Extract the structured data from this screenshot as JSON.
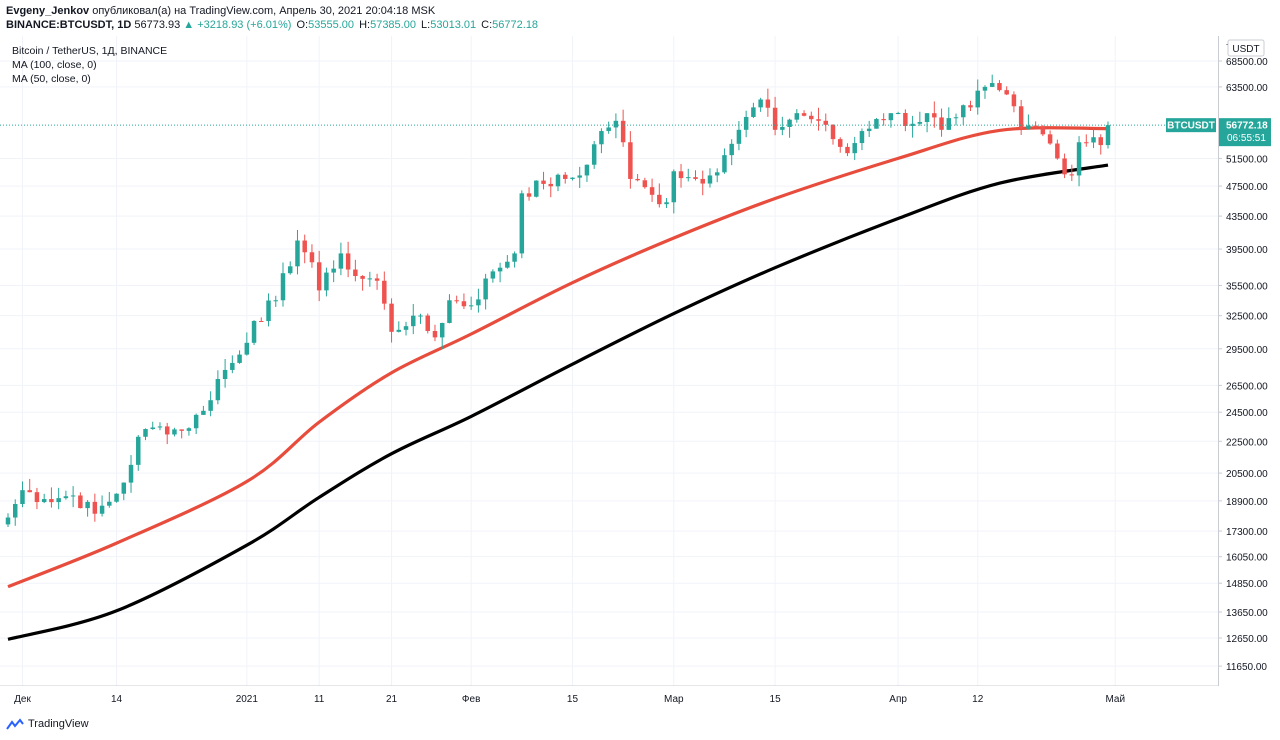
{
  "header": {
    "author": "Evgeny_Jenkov",
    "published_text": "опубликовал(а) на TradingView.com, Апрель 30, 2021 20:04:18 MSK",
    "symbol": "BINANCE:BTCUSDT, 1D",
    "last": "56773.93",
    "change": "▲ +3218.93 (+6.01%)",
    "o_label": "O:",
    "o_value": "53555.00",
    "h_label": "H:",
    "h_value": "57385.00",
    "l_label": "L:",
    "l_value": "53013.01",
    "c_label": "C:",
    "c_value": "56772.18"
  },
  "legend": {
    "title": "Bitcoin / TetherUS, 1Д, BINANCE",
    "ma100": "MA (100, close, 0)",
    "ma50": "MA (50, close, 0)"
  },
  "price_label": {
    "symbol": "BTCUSDT",
    "price": "56772.18",
    "countdown": "06:55:51"
  },
  "currency_badge": "USDT",
  "footer": {
    "brand": "TradingView"
  },
  "colors": {
    "up": "#26a69a",
    "down": "#ef5350",
    "ma50": "#e74c3c",
    "ma100": "#000000",
    "grid": "#f0f3fa"
  },
  "chart_data": {
    "type": "candlestick",
    "y_scale": "log",
    "ylim": [
      10800,
      80000
    ],
    "y_ticks": [
      "7",
      "68500.00",
      "63500.00",
      "51500.00",
      "47500.00",
      "43500.00",
      "39500.00",
      "35500.00",
      "32500.00",
      "29500.00",
      "26500.00",
      "24500.00",
      "22500.00",
      "20500.00",
      "18900.00",
      "17300.00",
      "16050.00",
      "14850.00",
      "13650.00",
      "12650.00",
      "11650.00"
    ],
    "x_ticks": [
      {
        "label": "Дек",
        "date": "2020-12-01"
      },
      {
        "label": "14",
        "date": "2020-12-14"
      },
      {
        "label": "2021",
        "date": "2021-01-01"
      },
      {
        "label": "11",
        "date": "2021-01-11"
      },
      {
        "label": "21",
        "date": "2021-01-21"
      },
      {
        "label": "Фев",
        "date": "2021-02-01"
      },
      {
        "label": "15",
        "date": "2021-02-15"
      },
      {
        "label": "Мар",
        "date": "2021-03-01"
      },
      {
        "label": "15",
        "date": "2021-03-15"
      },
      {
        "label": "Апр",
        "date": "2021-04-01"
      },
      {
        "label": "12",
        "date": "2021-04-12"
      },
      {
        "label": "Май",
        "date": "2021-05-01"
      }
    ],
    "series": [
      {
        "name": "BTCUSDT",
        "type": "candlestick",
        "anchors": [
          [
            "2020-11-29",
            18000
          ],
          [
            "2020-12-01",
            19500
          ],
          [
            "2020-12-04",
            19000
          ],
          [
            "2020-12-08",
            19200
          ],
          [
            "2020-12-11",
            18200
          ],
          [
            "2020-12-14",
            19300
          ],
          [
            "2020-12-16",
            21000
          ],
          [
            "2020-12-17",
            22800
          ],
          [
            "2020-12-20",
            23500
          ],
          [
            "2020-12-23",
            23200
          ],
          [
            "2020-12-26",
            24600
          ],
          [
            "2020-12-28",
            27000
          ],
          [
            "2020-12-31",
            29000
          ],
          [
            "2021-01-02",
            32000
          ],
          [
            "2021-01-05",
            34000
          ],
          [
            "2021-01-08",
            40500
          ],
          [
            "2021-01-10",
            38000
          ],
          [
            "2021-01-11",
            35000
          ],
          [
            "2021-01-13",
            37300
          ],
          [
            "2021-01-14",
            39000
          ],
          [
            "2021-01-16",
            36500
          ],
          [
            "2021-01-19",
            36000
          ],
          [
            "2021-01-21",
            31000
          ],
          [
            "2021-01-24",
            32500
          ],
          [
            "2021-01-27",
            30500
          ],
          [
            "2021-01-29",
            34000
          ],
          [
            "2021-02-01",
            33500
          ],
          [
            "2021-02-04",
            37000
          ],
          [
            "2021-02-07",
            39000
          ],
          [
            "2021-02-08",
            46500
          ],
          [
            "2021-02-11",
            47800
          ],
          [
            "2021-02-14",
            48500
          ],
          [
            "2021-02-16",
            49000
          ],
          [
            "2021-02-19",
            55800
          ],
          [
            "2021-02-21",
            57500
          ],
          [
            "2021-02-22",
            54000
          ],
          [
            "2021-02-23",
            48500
          ],
          [
            "2021-02-26",
            46300
          ],
          [
            "2021-02-28",
            45300
          ],
          [
            "2021-03-01",
            49600
          ],
          [
            "2021-03-04",
            48500
          ],
          [
            "2021-03-06",
            49000
          ],
          [
            "2021-03-08",
            52000
          ],
          [
            "2021-03-10",
            56000
          ],
          [
            "2021-03-13",
            61200
          ],
          [
            "2021-03-15",
            56000
          ],
          [
            "2021-03-18",
            58800
          ],
          [
            "2021-03-21",
            57500
          ],
          [
            "2021-03-23",
            54500
          ],
          [
            "2021-03-25",
            52300
          ],
          [
            "2021-03-27",
            55800
          ],
          [
            "2021-03-29",
            57800
          ],
          [
            "2021-03-31",
            58800
          ],
          [
            "2021-04-03",
            57000
          ],
          [
            "2021-04-05",
            58800
          ],
          [
            "2021-04-07",
            56000
          ],
          [
            "2021-04-09",
            58100
          ],
          [
            "2021-04-11",
            59800
          ],
          [
            "2021-04-13",
            63500
          ],
          [
            "2021-04-15",
            62900
          ],
          [
            "2021-04-17",
            60000
          ],
          [
            "2021-04-18",
            56200
          ],
          [
            "2021-04-20",
            56500
          ],
          [
            "2021-04-22",
            53800
          ],
          [
            "2021-04-23",
            51500
          ],
          [
            "2021-04-25",
            49000
          ],
          [
            "2021-04-26",
            54000
          ],
          [
            "2021-04-28",
            54800
          ],
          [
            "2021-04-29",
            53555
          ],
          [
            "2021-04-30",
            56772
          ]
        ]
      },
      {
        "name": "MA (50, close, 0)",
        "type": "line",
        "color": "#e74c3c",
        "points": [
          [
            "2020-11-29",
            14700
          ],
          [
            "2020-12-14",
            16700
          ],
          [
            "2021-01-01",
            20000
          ],
          [
            "2021-01-11",
            23800
          ],
          [
            "2021-01-21",
            27500
          ],
          [
            "2021-02-01",
            30800
          ],
          [
            "2021-02-15",
            35800
          ],
          [
            "2021-03-01",
            40800
          ],
          [
            "2021-03-15",
            45800
          ],
          [
            "2021-04-01",
            51500
          ],
          [
            "2021-04-15",
            55900
          ],
          [
            "2021-04-30",
            56200
          ]
        ]
      },
      {
        "name": "MA (100, close, 0)",
        "type": "line",
        "color": "#000000",
        "points": [
          [
            "2020-11-29",
            12600
          ],
          [
            "2020-12-14",
            13700
          ],
          [
            "2021-01-01",
            16600
          ],
          [
            "2021-01-11",
            19100
          ],
          [
            "2021-01-21",
            21700
          ],
          [
            "2021-02-01",
            24200
          ],
          [
            "2021-02-15",
            28200
          ],
          [
            "2021-03-01",
            32700
          ],
          [
            "2021-03-15",
            37400
          ],
          [
            "2021-04-01",
            43200
          ],
          [
            "2021-04-15",
            47900
          ],
          [
            "2021-04-30",
            50500
          ]
        ]
      }
    ]
  }
}
